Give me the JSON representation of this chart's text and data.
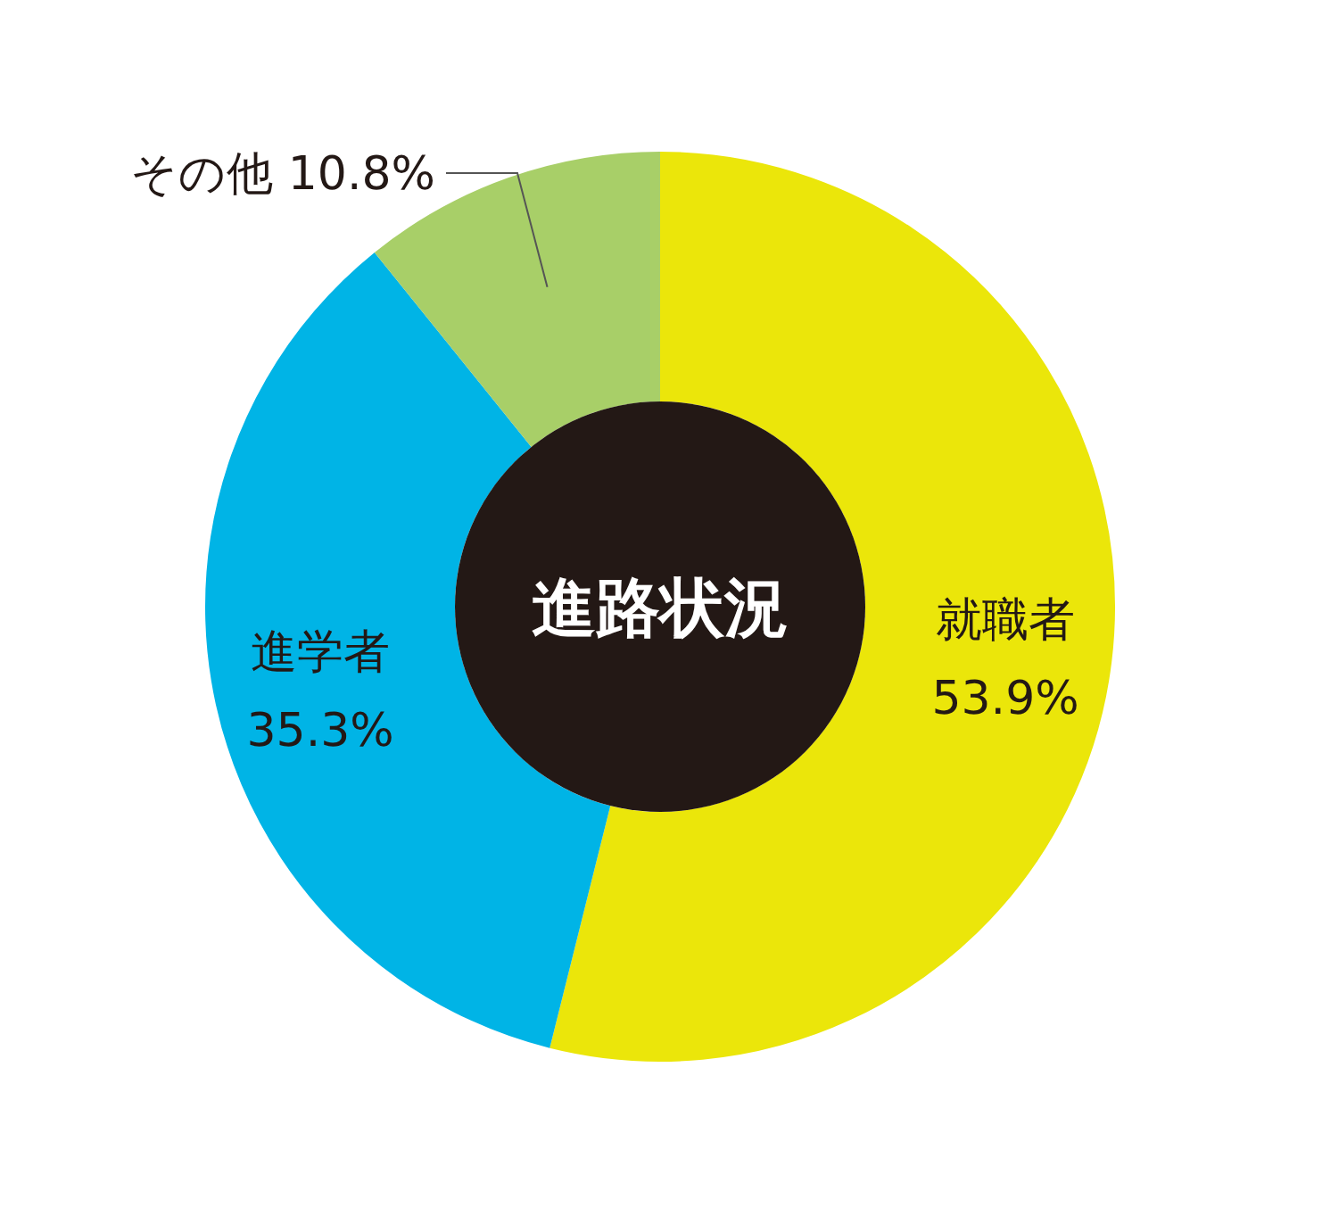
{
  "chart_data": {
    "type": "donut",
    "title": "進路状況",
    "categories": [
      "就職者",
      "進学者",
      "その他"
    ],
    "values": [
      53.9,
      35.3,
      10.8
    ],
    "colors": [
      "#ebe60a",
      "#00b4e6",
      "#a8cf68"
    ],
    "value_labels": [
      "53.9%",
      "35.3%",
      "10.8%"
    ],
    "legend": false
  }
}
